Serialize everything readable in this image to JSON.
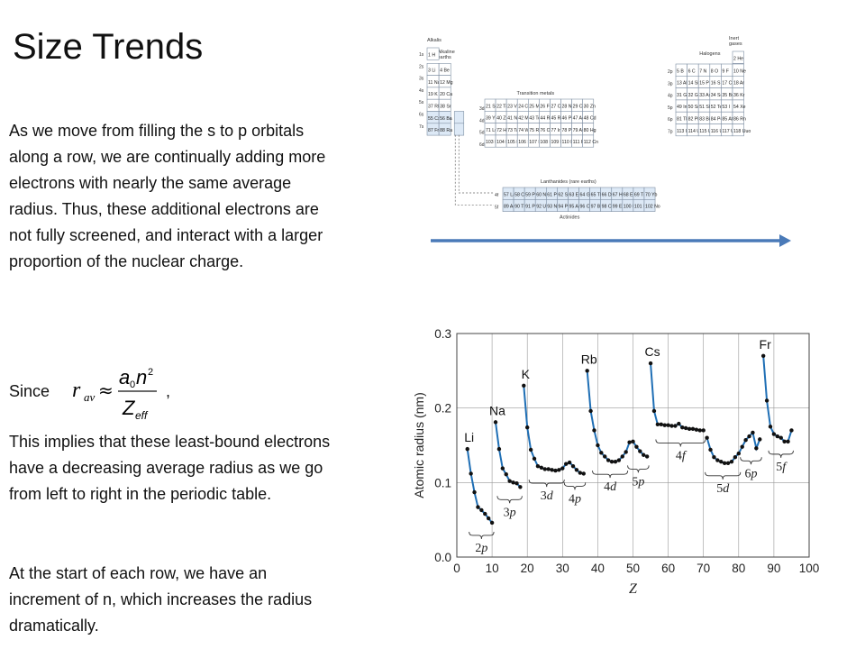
{
  "slide": {
    "title": "Size Trends",
    "paragraph1": "As we move from filling the s to p orbitals along a row, we are continually adding more electrons with nearly the same average radius. Thus, these additional electrons are not fully screened, and interact with a larger proportion of the nuclear charge.",
    "since_label": "Since",
    "comma": ",",
    "formula": {
      "lhs": "r",
      "lhs_sub": "av",
      "approx": "≈",
      "num_a": "a",
      "num_a_sub": "0",
      "num_n": "n",
      "num_exp": "2",
      "den": "Z",
      "den_sub": "eff"
    },
    "paragraph2": "This implies that these least-bound electrons have a decreasing average radius as we go from left to right in the periodic table.",
    "paragraph3": "At the start of each row, we have an increment of n, which increases the radius dramatically."
  },
  "periodic_table": {
    "labels": {
      "alkalis": "Alkalis",
      "alkaline1": "Alkaline",
      "alkaline2": "earths",
      "inert1": "Inert",
      "inert2": "gases",
      "halogens": "Halogens",
      "transition": "Transition metals",
      "lanthanides": "Lanthanides (rare earths)",
      "actinides": "Actinides"
    },
    "row_labels": [
      "1s",
      "2s",
      "3s",
      "4s",
      "5s",
      "6s",
      "7s"
    ],
    "p_row_labels": [
      "2p",
      "3p",
      "4p",
      "5p",
      "6p",
      "7p"
    ],
    "d_row_labels": [
      "3d",
      "4d",
      "5d",
      "6d"
    ],
    "f_row_labels": [
      "4f",
      "5f"
    ],
    "s_block": [
      [
        "1 H"
      ],
      [
        "3 Li",
        "4 Be"
      ],
      [
        "11 Na",
        "12 Mg"
      ],
      [
        "19 K",
        "20 Ca"
      ],
      [
        "37 Rb",
        "38 Sr"
      ],
      [
        "55 Cs",
        "56 Ba"
      ],
      [
        "87 Fr",
        "88 Ra"
      ]
    ],
    "he": "2 He",
    "d_block": [
      [
        "21 Sc",
        "22 Ti",
        "23 V",
        "24 Cr",
        "25 Mn",
        "26 Fe",
        "27 Co",
        "28 Ni",
        "29 Cu",
        "30 Zn"
      ],
      [
        "39 Y",
        "40 Zr",
        "41 Nb",
        "42 Mo",
        "43 Tc",
        "44 Ru",
        "45 Rh",
        "46 Pd",
        "47 Ag",
        "48 Cd"
      ],
      [
        "71 Lu",
        "72 Hf",
        "73 Ta",
        "74 W",
        "75 Re",
        "76 Os",
        "77 Ir",
        "78 Pt",
        "79 Au",
        "80 Hg"
      ],
      [
        "103 Lr",
        "104 Rf",
        "105 Db",
        "106 Sg",
        "107 Bh",
        "108 Hs",
        "109 Mt",
        "110 Ds",
        "111 Rg",
        "112 Cn"
      ]
    ],
    "p_block": [
      [
        "5 B",
        "6 C",
        "7 N",
        "8 O",
        "9 F",
        "10 Ne"
      ],
      [
        "13 Al",
        "14 Si",
        "15 P",
        "16 S",
        "17 Cl",
        "18 Ar"
      ],
      [
        "31 Ga",
        "32 Ge",
        "33 As",
        "34 Se",
        "35 Br",
        "36 Kr"
      ],
      [
        "49 In",
        "50 Sn",
        "51 Sb",
        "52 Te",
        "53 I",
        "54 Xe"
      ],
      [
        "81 Tl",
        "82 Pb",
        "83 Bi",
        "84 Po",
        "85 At",
        "86 Rn"
      ],
      [
        "113 Uut",
        "114 Uuq",
        "115 Uup",
        "116 Uuh",
        "117 Uus",
        "118 Uuo"
      ]
    ],
    "f_block": [
      [
        "57 La",
        "58 Ce",
        "59 Pr",
        "60 Nd",
        "61 Pm",
        "62 Sm",
        "63 Eu",
        "64 Gd",
        "65 Tb",
        "66 Dy",
        "67 Ho",
        "68 Er",
        "69 Tm",
        "70 Yb"
      ],
      [
        "89 Ac",
        "90 Th",
        "91 Pa",
        "92 U",
        "93 Np",
        "94 Pu",
        "95 Am",
        "96 Cm",
        "97 Bk",
        "98 Cf",
        "99 Es",
        "100 Fm",
        "101 Md",
        "102 No"
      ]
    ],
    "f_stub": [
      "57-70",
      "89-102"
    ]
  },
  "chart_data": {
    "type": "line",
    "xlabel": "Z",
    "ylabel": "Atomic radius (nm)",
    "xlim": [
      0,
      100
    ],
    "ylim": [
      0,
      0.3
    ],
    "xticks": [
      0,
      10,
      20,
      30,
      40,
      50,
      60,
      70,
      80,
      90,
      100
    ],
    "yticks": [
      "0.0",
      "0.1",
      "0.2",
      "0.3"
    ],
    "grid": true,
    "line_color": "#1f6fb5",
    "point_color": "#111111",
    "segments": [
      {
        "x": [
          3,
          4,
          5,
          6,
          7,
          8,
          9,
          10
        ],
        "y": [
          0.145,
          0.112,
          0.087,
          0.067,
          0.063,
          0.058,
          0.052,
          0.046
        ]
      },
      {
        "x": [
          11,
          12,
          13,
          14,
          15,
          16,
          17,
          18
        ],
        "y": [
          0.181,
          0.145,
          0.119,
          0.111,
          0.102,
          0.1,
          0.099,
          0.094
        ]
      },
      {
        "x": [
          19,
          20,
          21,
          22,
          23,
          24,
          25,
          26,
          27,
          28,
          29,
          30,
          31,
          32,
          33,
          34,
          35,
          36
        ],
        "y": [
          0.23,
          0.174,
          0.144,
          0.132,
          0.122,
          0.12,
          0.118,
          0.118,
          0.117,
          0.116,
          0.117,
          0.119,
          0.125,
          0.127,
          0.122,
          0.117,
          0.113,
          0.112
        ]
      },
      {
        "x": [
          37,
          38,
          39,
          40,
          41,
          42,
          43,
          44,
          45,
          46,
          47,
          48,
          49,
          50,
          51,
          52,
          53,
          54
        ],
        "y": [
          0.25,
          0.196,
          0.17,
          0.15,
          0.14,
          0.135,
          0.13,
          0.128,
          0.128,
          0.13,
          0.135,
          0.141,
          0.154,
          0.155,
          0.148,
          0.142,
          0.137,
          0.135
        ]
      },
      {
        "x": [
          55,
          56,
          57,
          58,
          59,
          60,
          61,
          62,
          63,
          64,
          65,
          66,
          67,
          68,
          69,
          70
        ],
        "y": [
          0.26,
          0.196,
          0.178,
          0.178,
          0.177,
          0.177,
          0.176,
          0.176,
          0.179,
          0.174,
          0.173,
          0.172,
          0.172,
          0.171,
          0.17,
          0.17
        ]
      },
      {
        "x": [
          71,
          72,
          73,
          74,
          75,
          76,
          77,
          78,
          79,
          80,
          81,
          82,
          83,
          84,
          85,
          86
        ],
        "y": [
          0.16,
          0.144,
          0.134,
          0.13,
          0.128,
          0.126,
          0.126,
          0.128,
          0.134,
          0.139,
          0.148,
          0.157,
          0.162,
          0.167,
          0.146,
          0.158
        ]
      },
      {
        "x": [
          87,
          88,
          89,
          90,
          91,
          92,
          93,
          94,
          95
        ],
        "y": [
          0.27,
          0.21,
          0.175,
          0.165,
          0.162,
          0.16,
          0.155,
          0.155,
          0.17
        ]
      }
    ],
    "element_labels": [
      {
        "text": "Li",
        "x": 3
      },
      {
        "text": "Na",
        "x": 11
      },
      {
        "text": "K",
        "x": 19
      },
      {
        "text": "Rb",
        "x": 37
      },
      {
        "text": "Cs",
        "x": 55
      },
      {
        "text": "Fr",
        "x": 87
      }
    ],
    "subshell_labels": [
      {
        "n": "2",
        "l": "p",
        "x1": 4,
        "x2": 10,
        "below": true
      },
      {
        "n": "3",
        "l": "p",
        "x1": 12,
        "x2": 18,
        "below": true
      },
      {
        "n": "3",
        "l": "d",
        "x1": 21,
        "x2": 30,
        "below": true
      },
      {
        "n": "4",
        "l": "p",
        "x1": 31,
        "x2": 36,
        "below": true
      },
      {
        "n": "4",
        "l": "d",
        "x1": 39,
        "x2": 48,
        "below": true
      },
      {
        "n": "5",
        "l": "p",
        "x1": 49,
        "x2": 54,
        "below": true
      },
      {
        "n": "4",
        "l": "f",
        "x1": 57,
        "x2": 70,
        "below": true
      },
      {
        "n": "5",
        "l": "d",
        "x1": 71,
        "x2": 80,
        "below": true
      },
      {
        "n": "6",
        "l": "p",
        "x1": 81,
        "x2": 86,
        "below": true
      },
      {
        "n": "5",
        "l": "f",
        "x1": 89,
        "x2": 95,
        "below": true
      }
    ]
  }
}
